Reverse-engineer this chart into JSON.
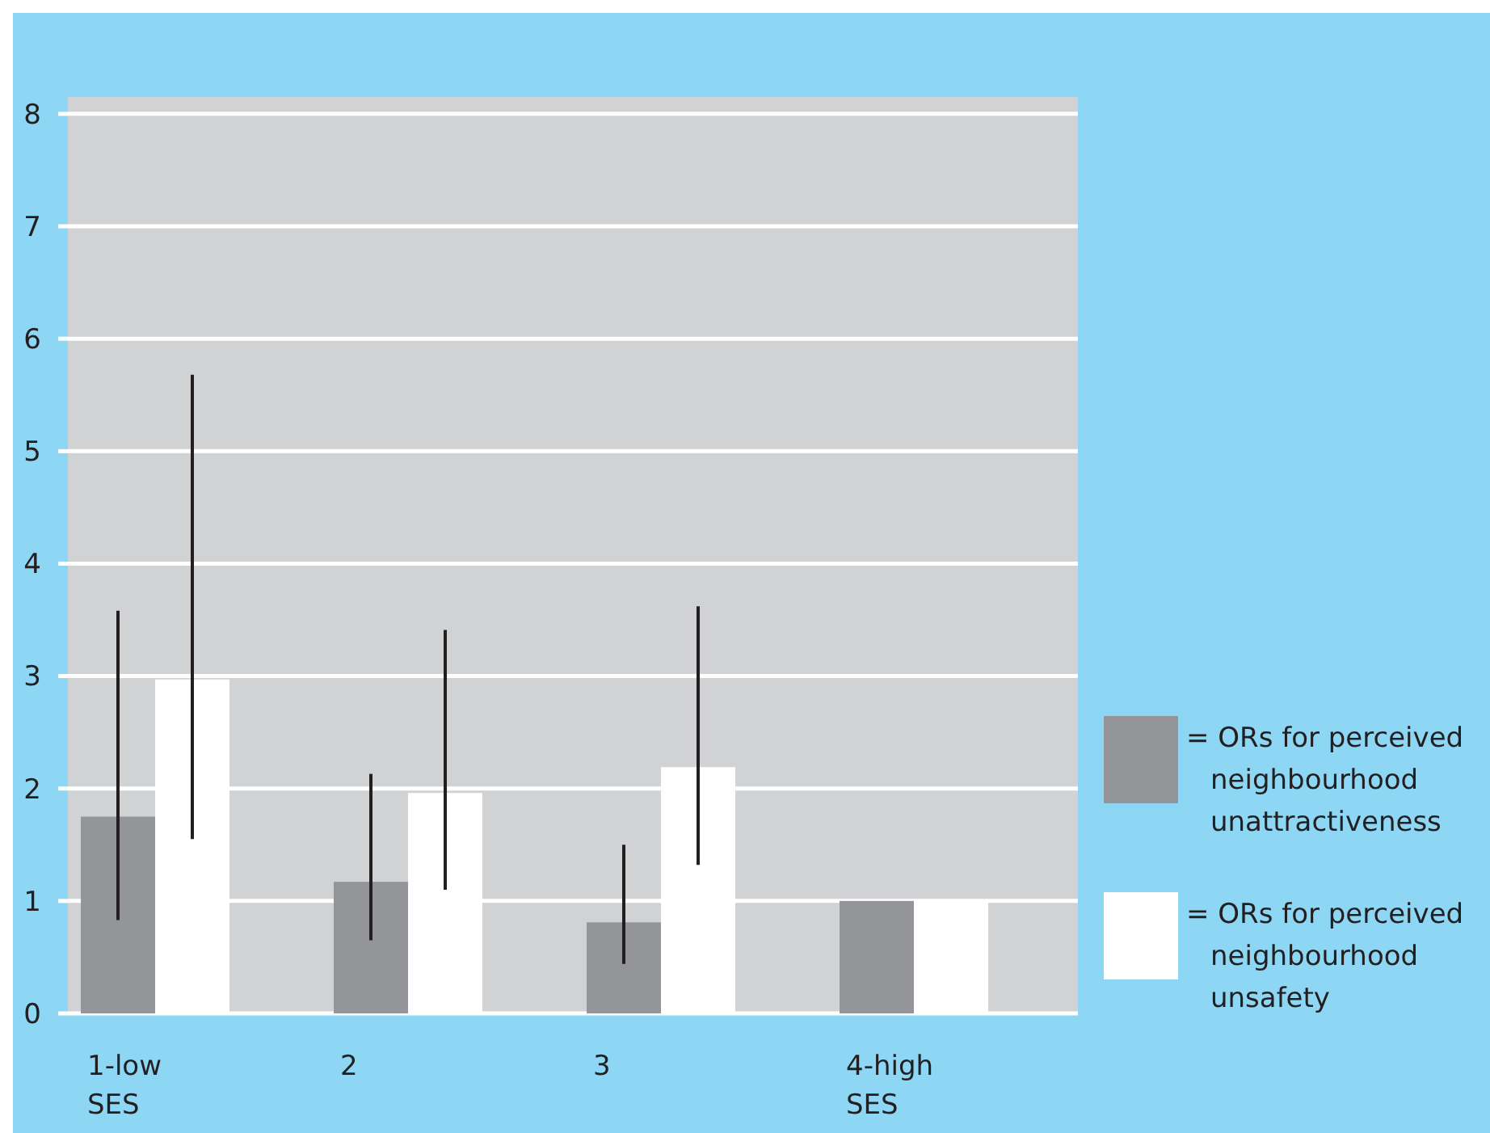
{
  "chart_data": {
    "type": "bar",
    "categories": [
      "1-low SES",
      "2",
      "3",
      "4-high SES"
    ],
    "series": [
      {
        "name": "= ORs for perceived neighbourhood unattractiveness",
        "color": "#949599",
        "values": [
          1.75,
          1.17,
          0.81,
          1.0
        ],
        "errors": [
          [
            0.83,
            3.58
          ],
          [
            0.65,
            2.13
          ],
          [
            0.44,
            1.5
          ],
          null
        ]
      },
      {
        "name": "= ORs for perceived neighbourhood unsafety",
        "color": "#ffffff",
        "values": [
          2.97,
          1.96,
          2.19,
          1.0
        ],
        "errors": [
          [
            1.55,
            5.68
          ],
          [
            1.1,
            3.41
          ],
          [
            1.32,
            3.62
          ],
          null
        ]
      }
    ],
    "ylim": [
      0,
      8.15
    ],
    "yticks": [
      0,
      1,
      2,
      3,
      4,
      5,
      6,
      7,
      8
    ],
    "grid": "y",
    "legend": "right"
  }
}
